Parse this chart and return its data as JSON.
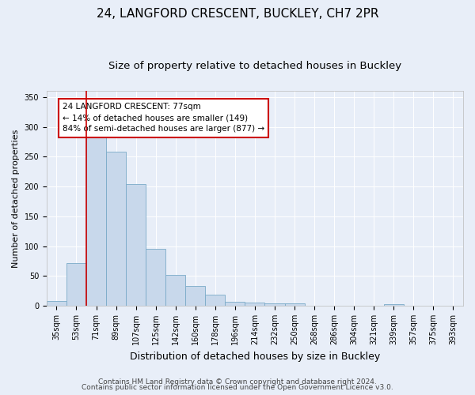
{
  "title1": "24, LANGFORD CRESCENT, BUCKLEY, CH7 2PR",
  "title2": "Size of property relative to detached houses in Buckley",
  "xlabel": "Distribution of detached houses by size in Buckley",
  "ylabel": "Number of detached properties",
  "categories": [
    "35sqm",
    "53sqm",
    "71sqm",
    "89sqm",
    "107sqm",
    "125sqm",
    "142sqm",
    "160sqm",
    "178sqm",
    "196sqm",
    "214sqm",
    "232sqm",
    "250sqm",
    "268sqm",
    "286sqm",
    "304sqm",
    "321sqm",
    "339sqm",
    "357sqm",
    "375sqm",
    "393sqm"
  ],
  "values": [
    8,
    72,
    285,
    258,
    204,
    96,
    52,
    33,
    18,
    7,
    6,
    4,
    4,
    0,
    0,
    0,
    0,
    3,
    0,
    0,
    0
  ],
  "bar_color": "#c8d8eb",
  "bar_edge_color": "#7aaac8",
  "vline_x": 1.5,
  "vline_color": "#cc0000",
  "annotation_text": "24 LANGFORD CRESCENT: 77sqm\n← 14% of detached houses are smaller (149)\n84% of semi-detached houses are larger (877) →",
  "annotation_box_color": "white",
  "annotation_box_edge": "#cc0000",
  "ylim": [
    0,
    360
  ],
  "yticks": [
    0,
    50,
    100,
    150,
    200,
    250,
    300,
    350
  ],
  "footer1": "Contains HM Land Registry data © Crown copyright and database right 2024.",
  "footer2": "Contains public sector information licensed under the Open Government Licence v3.0.",
  "bg_color": "#e8eef8",
  "plot_bg_color": "#e8eef8",
  "title1_fontsize": 11,
  "title2_fontsize": 9.5,
  "xlabel_fontsize": 9,
  "ylabel_fontsize": 8,
  "tick_fontsize": 7,
  "annot_fontsize": 7.5,
  "footer_fontsize": 6.5
}
